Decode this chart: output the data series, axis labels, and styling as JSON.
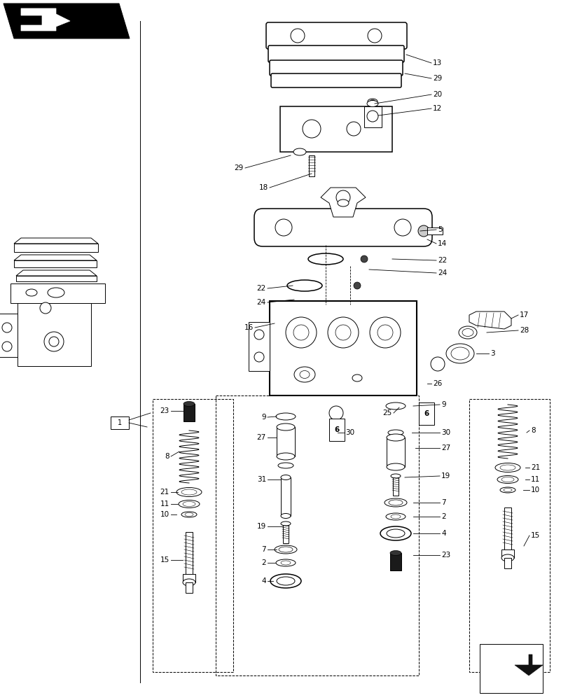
{
  "bg_color": "#ffffff",
  "line_color": "#000000",
  "figure_width": 8.12,
  "figure_height": 10.0,
  "dpi": 100
}
